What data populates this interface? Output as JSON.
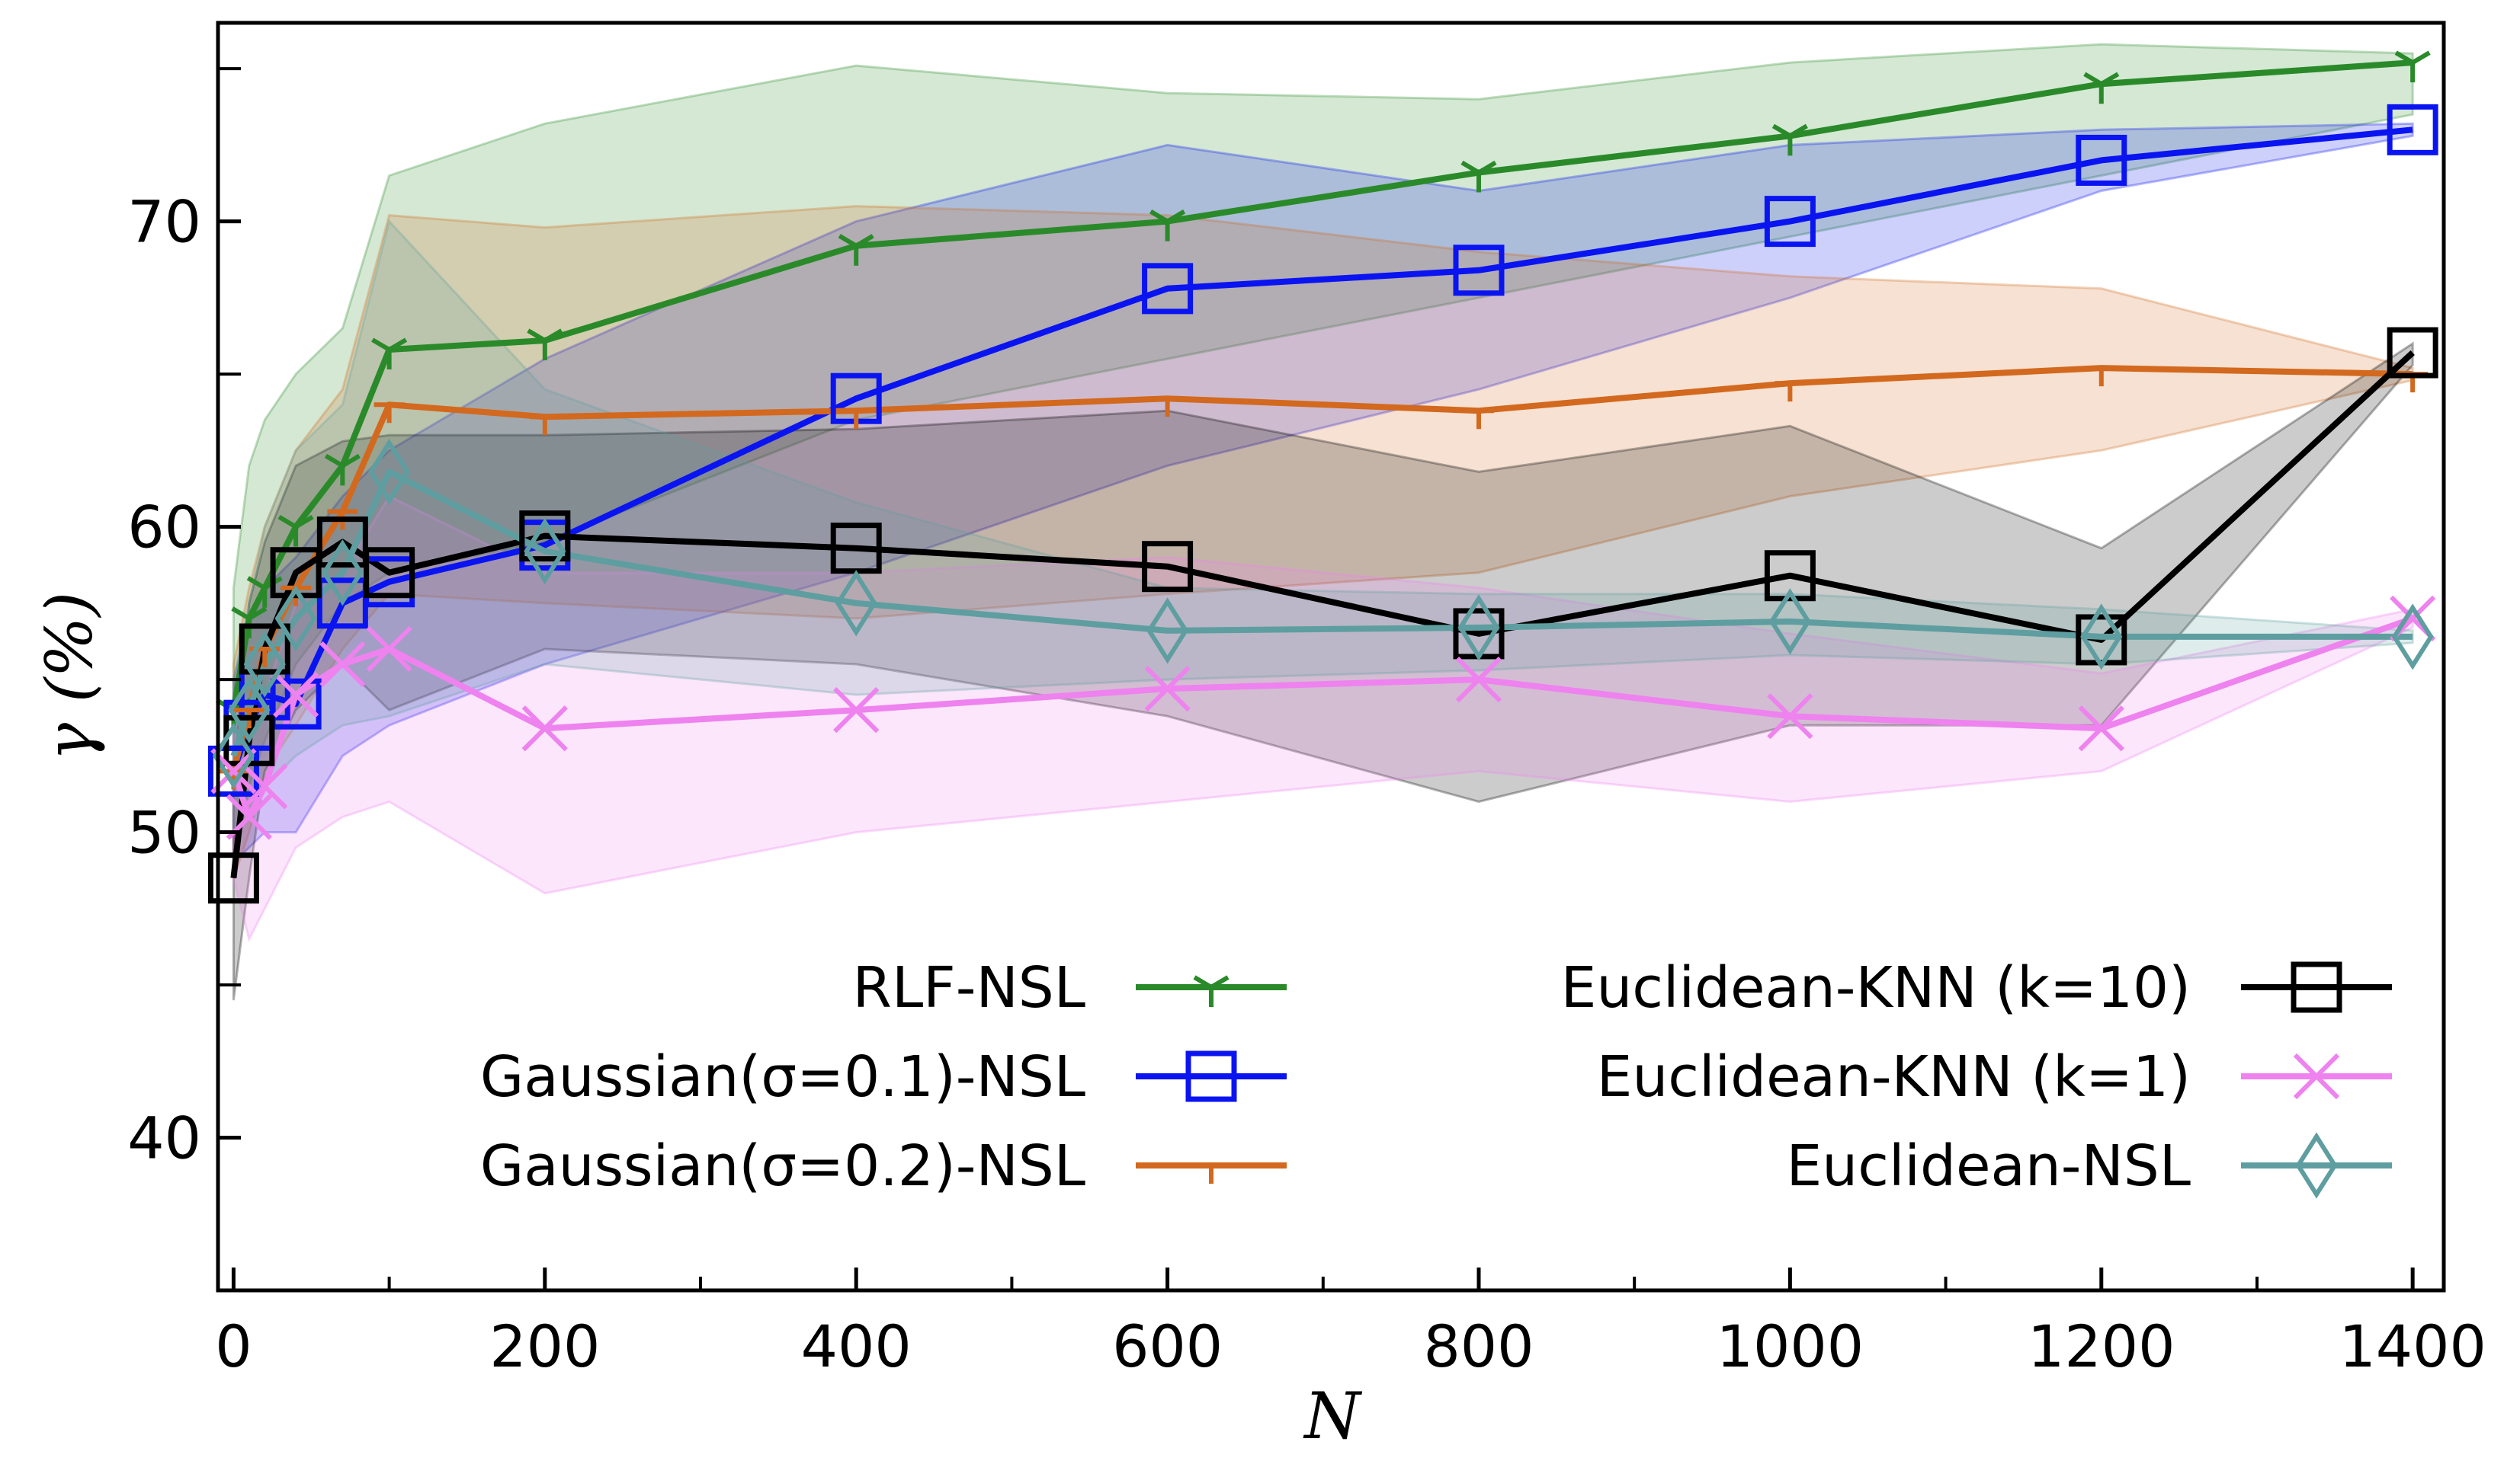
{
  "chart_data": {
    "type": "line",
    "title": "",
    "xlabel": "N",
    "ylabel": "γ  (%)",
    "xlim": [
      -10,
      1420
    ],
    "ylim": [
      35,
      76.5
    ],
    "x_ticks": [
      0,
      200,
      400,
      600,
      800,
      1000,
      1200,
      1400
    ],
    "x_tick_labels": [
      "0",
      "200",
      "400",
      "600",
      "800",
      "1000",
      "1200",
      "1400"
    ],
    "y_ticks": [
      40,
      50,
      60,
      70
    ],
    "y_tick_labels": [
      "40",
      "50",
      "60",
      "70"
    ],
    "grid": false,
    "legend_position": "lower-right",
    "series": [
      {
        "name": "RLF-NSL",
        "color": "#2a8a2a",
        "marker": "tri",
        "x": [
          0,
          10,
          20,
          40,
          70,
          100,
          200,
          400,
          600,
          800,
          1000,
          1200,
          1400
        ],
        "values": [
          54,
          57,
          58,
          60,
          62,
          65.8,
          66.1,
          69.2,
          70.0,
          71.6,
          72.8,
          74.5,
          75.2
        ],
        "upper": [
          58,
          62,
          63.5,
          65,
          66.5,
          71.5,
          73.2,
          75.1,
          74.2,
          74.0,
          75.2,
          75.8,
          75.5
        ],
        "lower": [
          49,
          51.5,
          53,
          55.5,
          57.5,
          58.5,
          59.5,
          63.5,
          65.5,
          67.5,
          69.5,
          71.5,
          73.5
        ]
      },
      {
        "name": "Gaussian(σ=0.1)-NSL",
        "color": "#0a14f0",
        "marker": "square",
        "x": [
          0,
          10,
          20,
          40,
          70,
          100,
          200,
          400,
          600,
          800,
          1000,
          1200,
          1400
        ],
        "values": [
          52,
          53.5,
          54.5,
          54.2,
          57.5,
          58.2,
          59.4,
          64.2,
          67.8,
          68.4,
          70.0,
          72.0,
          73.0
        ],
        "upper": [
          55,
          57,
          58,
          59,
          61,
          62.5,
          65.5,
          70.0,
          72.5,
          71.0,
          72.5,
          73.0,
          73.2
        ],
        "lower": [
          49,
          49.5,
          50,
          50,
          52.5,
          53.5,
          55.5,
          58.5,
          62.0,
          64.5,
          67.5,
          71.0,
          72.8
        ]
      },
      {
        "name": "Gaussian(σ=0.2)-NSL",
        "color": "#d2691e",
        "marker": "tick",
        "x": [
          0,
          10,
          20,
          40,
          70,
          100,
          200,
          400,
          600,
          800,
          1000,
          1200,
          1400
        ],
        "values": [
          52,
          54,
          56,
          58,
          60.5,
          64.0,
          63.6,
          63.8,
          64.2,
          63.8,
          64.7,
          65.2,
          65.0
        ],
        "upper": [
          55.5,
          58,
          60,
          62.5,
          64.5,
          70.2,
          69.8,
          70.5,
          70.2,
          69.0,
          68.2,
          67.8,
          65.2
        ],
        "lower": [
          48.5,
          50,
          52,
          53.5,
          56,
          57.8,
          57.5,
          57.0,
          57.8,
          58.5,
          61.0,
          62.5,
          64.8
        ]
      },
      {
        "name": "Euclidean-KNN (k=10)",
        "color": "#000000",
        "marker": "square-open",
        "x": [
          0,
          10,
          20,
          40,
          70,
          100,
          200,
          400,
          600,
          800,
          1000,
          1200,
          1400
        ],
        "values": [
          48.5,
          53,
          56,
          58.5,
          59.5,
          58.5,
          59.7,
          59.3,
          58.7,
          56.5,
          58.4,
          56.3,
          65.7
        ],
        "upper": [
          52,
          57.5,
          59.5,
          62,
          62.8,
          63.0,
          63.0,
          63.2,
          63.8,
          61.8,
          63.3,
          59.3,
          66.0
        ],
        "lower": [
          44.5,
          48.5,
          52,
          54,
          55.5,
          54.0,
          56.0,
          55.5,
          53.8,
          51.0,
          53.5,
          53.5,
          65.3
        ]
      },
      {
        "name": "Euclidean-KNN (k=1)",
        "color": "#ee82ee",
        "marker": "x",
        "x": [
          0,
          10,
          20,
          40,
          70,
          100,
          200,
          400,
          600,
          800,
          1000,
          1200,
          1400
        ],
        "values": [
          52,
          50.5,
          51.5,
          54.5,
          55.5,
          56.0,
          53.4,
          54.0,
          54.7,
          55.0,
          53.8,
          53.4,
          57.0
        ],
        "upper": [
          54.5,
          53.5,
          54.5,
          57.5,
          58.5,
          61.0,
          58.5,
          58.5,
          59.0,
          58.0,
          56.5,
          55.2,
          57.3
        ],
        "lower": [
          48.5,
          46.5,
          47.5,
          49.5,
          50.5,
          51.0,
          48.0,
          50.0,
          51.0,
          52.0,
          51.0,
          52.0,
          56.7
        ]
      },
      {
        "name": "Euclidean-NSL",
        "color": "#5f9ea0",
        "marker": "diamond",
        "x": [
          0,
          10,
          20,
          40,
          70,
          100,
          200,
          400,
          600,
          800,
          1000,
          1200,
          1400
        ],
        "values": [
          52.5,
          54,
          55.5,
          57.0,
          58.5,
          61.8,
          59.2,
          57.5,
          56.6,
          56.7,
          56.9,
          56.4,
          56.4
        ],
        "upper": [
          55,
          57.5,
          60,
          62.5,
          64,
          70.0,
          64.5,
          60.8,
          58.0,
          57.8,
          57.8,
          57.3,
          56.6
        ],
        "lower": [
          50,
          50.5,
          51.5,
          52.5,
          53.5,
          53.8,
          55.5,
          54.5,
          55.0,
          55.3,
          55.8,
          55.5,
          56.2
        ]
      }
    ],
    "legend": {
      "left_column": [
        "RLF-NSL",
        "Gaussian(σ=0.1)-NSL",
        "Gaussian(σ=0.2)-NSL"
      ],
      "right_column": [
        "Euclidean-KNN (k=10)",
        "Euclidean-KNN (k=1)",
        "Euclidean-NSL"
      ]
    }
  }
}
